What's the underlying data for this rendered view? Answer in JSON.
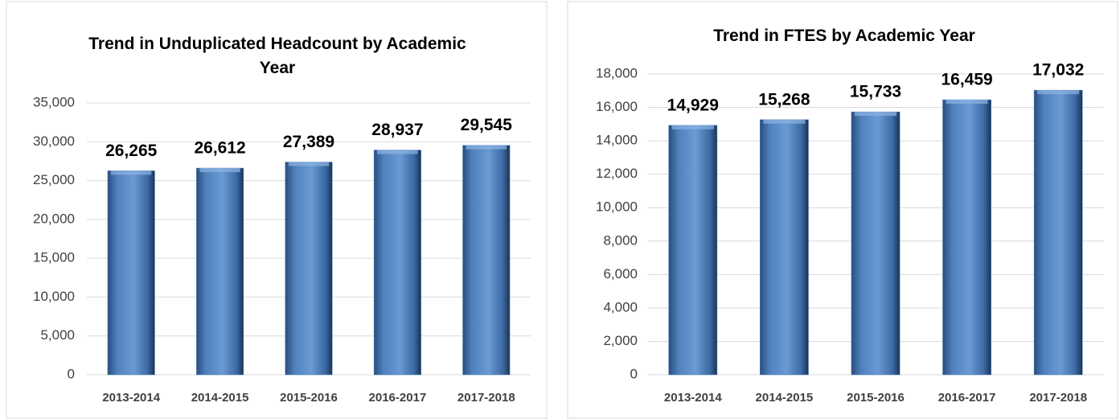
{
  "chart_data": [
    {
      "type": "bar",
      "title": "Trend in Unduplicated Headcount by Academic Year",
      "categories": [
        "2013-2014",
        "2014-2015",
        "2015-2016",
        "2016-2017",
        "2017-2018"
      ],
      "values": [
        26265,
        26612,
        27389,
        28937,
        29545
      ],
      "value_labels": [
        "26,265",
        "26,612",
        "27,389",
        "28,937",
        "29,545"
      ],
      "color": "#4f81bd",
      "ylim": [
        0,
        35000
      ],
      "yticks": [
        0,
        {
          "value": 5000,
          "label": "5,000"
        },
        {
          "value": 10000,
          "label": "10,000"
        },
        {
          "value": 15000,
          "label": "15,000"
        },
        {
          "value": 20000,
          "label": "20,000"
        },
        {
          "value": 25000,
          "label": "25,000"
        },
        {
          "value": 30000,
          "label": "30,000"
        },
        {
          "value": 35000,
          "label": "35,000"
        }
      ],
      "grid": true
    },
    {
      "type": "bar",
      "title": "Trend in FTES by Academic Year",
      "categories": [
        "2013-2014",
        "2014-2015",
        "2015-2016",
        "2016-2017",
        "2017-2018"
      ],
      "values": [
        14929,
        15268,
        15733,
        16459,
        17032
      ],
      "value_labels": [
        "14,929",
        "15,268",
        "15,733",
        "16,459",
        "17,032"
      ],
      "color": "#4f81bd",
      "ylim": [
        0,
        18000
      ],
      "yticks": [
        0,
        {
          "value": 2000,
          "label": "2,000"
        },
        {
          "value": 4000,
          "label": "4,000"
        },
        {
          "value": 6000,
          "label": "6,000"
        },
        {
          "value": 8000,
          "label": "8,000"
        },
        {
          "value": 10000,
          "label": "10,000"
        },
        {
          "value": 12000,
          "label": "12,000"
        },
        {
          "value": 14000,
          "label": "14,000"
        },
        {
          "value": 16000,
          "label": "16,000"
        },
        {
          "value": 18000,
          "label": "18,000"
        }
      ],
      "grid": true
    }
  ]
}
